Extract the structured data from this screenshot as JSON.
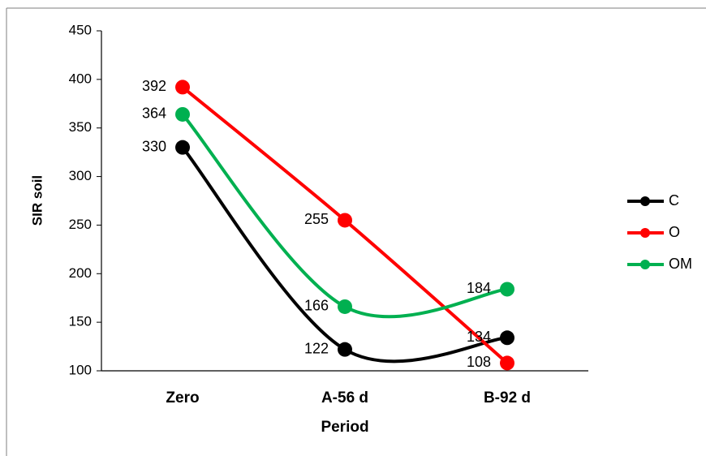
{
  "chart_data": {
    "type": "line",
    "smooth": true,
    "x_label": "Period",
    "y_label": "SIR soil",
    "categories": [
      "Zero",
      "A-56 d",
      "B-92 d"
    ],
    "series": [
      {
        "name": "C",
        "color": "#000000",
        "values": [
          330,
          122,
          134
        ]
      },
      {
        "name": "O",
        "color": "#ff0000",
        "values": [
          392,
          255,
          108
        ]
      },
      {
        "name": "OM",
        "color": "#00b050",
        "values": [
          364,
          166,
          184
        ]
      }
    ],
    "ylim": [
      100,
      450
    ],
    "yticks": [
      100,
      150,
      200,
      250,
      300,
      350,
      400,
      450
    ],
    "legend": "right"
  }
}
